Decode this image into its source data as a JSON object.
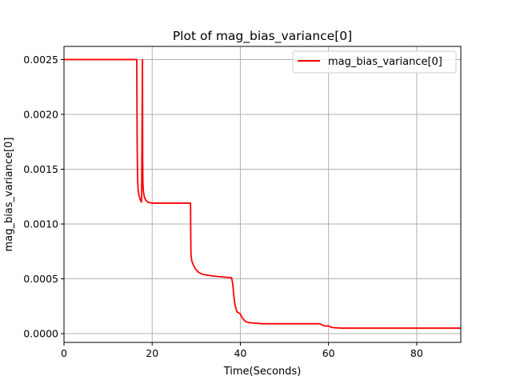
{
  "chart_data": {
    "type": "line",
    "title": "Plot of mag_bias_variance[0]",
    "xlabel": "Time(Seconds)",
    "ylabel": "mag_bias_variance[0]",
    "xlim": [
      0,
      90
    ],
    "ylim": [
      -8e-05,
      0.00262
    ],
    "xticks": [
      0,
      20,
      40,
      60,
      80
    ],
    "xtick_labels": [
      "0",
      "20",
      "40",
      "60",
      "80"
    ],
    "yticks": [
      0.0,
      0.0005,
      0.001,
      0.0015,
      0.002,
      0.0025
    ],
    "ytick_labels": [
      "0.0000",
      "0.0005",
      "0.0010",
      "0.0015",
      "0.0020",
      "0.0025"
    ],
    "grid": true,
    "legend_position": "top-right",
    "series": [
      {
        "name": "mag_bias_variance[0]",
        "color": "#ff0000",
        "x": [
          0,
          16.5,
          16.6,
          16.7,
          16.8,
          17.0,
          17.3,
          17.6,
          17.8,
          17.85,
          17.9,
          18.0,
          18.2,
          18.5,
          19.0,
          20.0,
          21.0,
          28.7,
          28.75,
          28.8,
          29.0,
          29.3,
          29.8,
          30.5,
          31.5,
          33.0,
          35.0,
          38.0,
          38.3,
          38.5,
          38.8,
          39.2,
          39.6,
          40.0,
          40.5,
          41.2,
          42.0,
          43.5,
          45.0,
          50.0,
          55.0,
          58.0,
          59.0,
          60.0,
          60.5,
          61.0,
          63.0,
          70.0,
          80.0,
          90.0
        ],
        "y": [
          0.0025,
          0.0025,
          0.0017,
          0.0014,
          0.00132,
          0.00126,
          0.00122,
          0.0012,
          0.0025,
          0.0016,
          0.00138,
          0.0013,
          0.00125,
          0.00122,
          0.0012,
          0.00119,
          0.00119,
          0.00119,
          0.0009,
          0.00072,
          0.00066,
          0.00063,
          0.00059,
          0.00056,
          0.00054,
          0.00053,
          0.00052,
          0.00051,
          0.00045,
          0.00035,
          0.00026,
          0.0002,
          0.00019,
          0.00018,
          0.00014,
          0.00011,
          0.0001,
          9.5e-05,
          9e-05,
          9e-05,
          9e-05,
          9e-05,
          7e-05,
          7e-05,
          6e-05,
          5.5e-05,
          5e-05,
          5e-05,
          5e-05,
          5e-05
        ]
      }
    ]
  }
}
